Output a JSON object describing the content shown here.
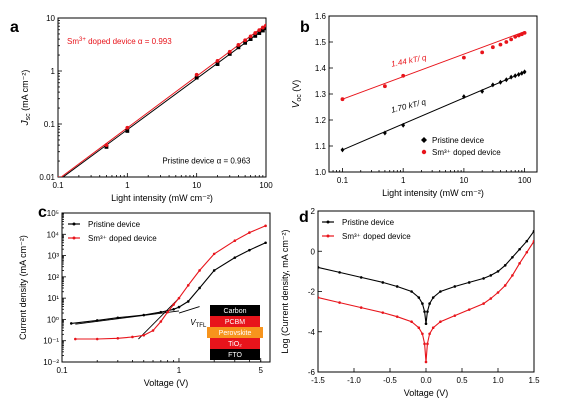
{
  "colors": {
    "black_series": "#000000",
    "red_series": "#e8141b"
  },
  "chart_data": [
    {
      "panel": "a",
      "type": "line",
      "xlabel": "Light intensity (mW cm⁻²)",
      "ylabel_main": "J",
      "ylabel_sub": "sc",
      "ylabel_unit": " (mA cm⁻²)",
      "xscale": "log",
      "yscale": "log",
      "xlim": [
        0.1,
        100
      ],
      "ylim": [
        0.01,
        10
      ],
      "xticks": [
        0.1,
        1,
        10,
        100
      ],
      "xtick_labels": [
        "0.1",
        "1",
        "10",
        "100"
      ],
      "yticks": [
        0.01,
        0.1,
        1,
        10
      ],
      "ytick_labels": [
        "0.01",
        "0.1",
        "1",
        "10"
      ],
      "series": [
        {
          "name": "Pristine device",
          "color": "#000000",
          "marker": "square",
          "x": [
            0.1,
            0.5,
            1,
            10,
            20,
            30,
            40,
            50,
            60,
            70,
            80,
            90,
            100
          ],
          "y": [
            0.009,
            0.037,
            0.074,
            0.75,
            1.35,
            2.1,
            2.8,
            3.4,
            4.0,
            4.6,
            5.2,
            5.8,
            6.4
          ],
          "fit": {
            "x": [
              0.1,
              100
            ],
            "y": [
              0.0085,
              6.6
            ]
          }
        },
        {
          "name": "Sm³⁺ doped device",
          "color": "#e8141b",
          "marker": "circle",
          "x": [
            0.1,
            0.5,
            1,
            10,
            20,
            30,
            40,
            50,
            60,
            70,
            80,
            90,
            100
          ],
          "y": [
            0.0095,
            0.04,
            0.085,
            0.85,
            1.55,
            2.3,
            3.1,
            3.8,
            4.5,
            5.2,
            5.9,
            6.6,
            7.2
          ],
          "fit": {
            "x": [
              0.1,
              100
            ],
            "y": [
              0.009,
              7.5
            ]
          }
        }
      ],
      "annotations": [
        {
          "prefix": "Sm",
          "sup": "3+",
          "suffix": " doped device α = 0.993",
          "color": "#e8141b",
          "at": [
            0.135,
            3.2
          ]
        },
        {
          "prefix": "Pristine device α = 0.963",
          "sup": "",
          "suffix": "",
          "color": "#000000",
          "at": [
            3.2,
            0.018
          ]
        }
      ]
    },
    {
      "panel": "b",
      "type": "line",
      "xlabel": "Light intensity (mW cm⁻²)",
      "ylabel_main": "V",
      "ylabel_sub": "oc",
      "ylabel_unit": " (V)",
      "xscale": "log",
      "yscale": "linear",
      "xlim": [
        0.06,
        160
      ],
      "ylim": [
        1.0,
        1.6
      ],
      "xticks": [
        0.1,
        1,
        10,
        100
      ],
      "xtick_labels": [
        "0.1",
        "1",
        "10",
        "100"
      ],
      "yticks": [
        1.0,
        1.1,
        1.2,
        1.3,
        1.4,
        1.5,
        1.6
      ],
      "ytick_labels": [
        "1.0",
        "1.1",
        "1.2",
        "1.3",
        "1.4",
        "1.5",
        "1.6"
      ],
      "series": [
        {
          "name": "Pristine device",
          "color": "#000000",
          "marker": "diamond",
          "x": [
            0.1,
            0.5,
            1,
            10,
            20,
            30,
            40,
            50,
            60,
            70,
            80,
            90,
            100
          ],
          "y": [
            1.085,
            1.15,
            1.18,
            1.29,
            1.31,
            1.335,
            1.345,
            1.355,
            1.365,
            1.37,
            1.375,
            1.38,
            1.385
          ],
          "fit": {
            "x": [
              0.1,
              100
            ],
            "y": [
              1.085,
              1.385
            ]
          }
        },
        {
          "name": "Sm³⁺ doped device",
          "color": "#e8141b",
          "marker": "circle",
          "x": [
            0.1,
            0.5,
            1,
            10,
            20,
            30,
            40,
            50,
            60,
            70,
            80,
            90,
            100
          ],
          "y": [
            1.28,
            1.33,
            1.37,
            1.44,
            1.46,
            1.48,
            1.49,
            1.5,
            1.51,
            1.52,
            1.525,
            1.53,
            1.535
          ],
          "fit": {
            "x": [
              0.1,
              100
            ],
            "y": [
              1.28,
              1.54
            ]
          }
        }
      ],
      "annotations": [
        {
          "text": "1.44 kT/ q",
          "color": "#e8141b",
          "at": [
            0.65,
            1.405
          ],
          "rotate": -11
        },
        {
          "text": "1.70 kT/ q",
          "color": "#000000",
          "at": [
            0.65,
            1.228
          ],
          "rotate": -14
        }
      ],
      "legend": {
        "position": "bottom-right"
      }
    },
    {
      "panel": "c",
      "type": "line",
      "xlabel": "Voltage (V)",
      "ylabel": "Current density (mA cm⁻²)",
      "xscale": "log",
      "yscale": "log",
      "xlim": [
        0.1,
        6
      ],
      "ylim": [
        0.01,
        100000
      ],
      "xticks": [
        0.1,
        1,
        5
      ],
      "xtick_labels": [
        "0.1",
        "1",
        "5"
      ],
      "yticks": [
        0.01,
        0.1,
        1,
        10,
        100,
        1000,
        10000,
        100000
      ],
      "ytick_labels": [
        "10⁻²",
        "10⁻¹",
        "10⁰",
        "10¹",
        "10²",
        "10³",
        "10⁴",
        "10⁵"
      ],
      "series": [
        {
          "name": "Pristine device",
          "color": "#000000",
          "x": [
            0.12,
            0.2,
            0.3,
            0.5,
            0.7,
            0.9,
            1.0,
            1.2,
            1.5,
            2,
            3,
            4,
            5.5
          ],
          "y": [
            0.65,
            0.9,
            1.2,
            1.6,
            2.2,
            3.0,
            3.8,
            7,
            30,
            200,
            800,
            1800,
            4000
          ]
        },
        {
          "name": "Sm³⁺ doped device",
          "color": "#e8141b",
          "x": [
            0.13,
            0.2,
            0.3,
            0.4,
            0.5,
            0.6,
            0.7,
            0.8,
            0.9,
            1.0,
            1.2,
            1.5,
            2,
            3,
            4,
            5.5
          ],
          "y": [
            0.12,
            0.12,
            0.13,
            0.15,
            0.18,
            0.3,
            0.8,
            2.2,
            5,
            10,
            40,
            200,
            1200,
            5000,
            12000,
            25000
          ]
        }
      ],
      "fit_lines": [
        {
          "x": [
            0.13,
            1.0
          ],
          "y": [
            0.6,
            2.5
          ]
        },
        {
          "x": [
            0.45,
            1.0
          ],
          "y": [
            0.12,
            10
          ]
        },
        {
          "x": [
            1.0,
            1.5
          ],
          "y": [
            2.0,
            4.0
          ]
        }
      ],
      "vtfl_label": {
        "main": "V",
        "sub": "TFL"
      },
      "device_stack": [
        {
          "label": "Carbon",
          "fill": "#000000",
          "text_color": "#ffffff"
        },
        {
          "label": "PCBM",
          "fill": "#e8141b",
          "text_color": "#ffffff"
        },
        {
          "label": "Perovskite",
          "fill": "#f7941d",
          "text_color": "#ffffff"
        },
        {
          "label": "TiO₂",
          "fill": "#e8141b",
          "text_color": "#ffffff"
        },
        {
          "label": "FTO",
          "fill": "#000000",
          "text_color": "#ffffff"
        }
      ]
    },
    {
      "panel": "d",
      "type": "line",
      "xlabel": "Voltage (V)",
      "ylabel": "Log (Current density, mA cm⁻²)",
      "xscale": "linear",
      "yscale": "linear",
      "xlim": [
        -1.5,
        1.5
      ],
      "ylim": [
        -6,
        2
      ],
      "xticks": [
        -1.5,
        -1.0,
        -0.5,
        0.0,
        0.5,
        1.0,
        1.5
      ],
      "xtick_labels": [
        "-1.5",
        "-1.0",
        "-0.5",
        "0.0",
        "0.5",
        "1.0",
        "1.5"
      ],
      "yticks": [
        -6,
        -4,
        -2,
        0,
        2
      ],
      "ytick_labels": [
        "-6",
        "-4",
        "-2",
        "0",
        "2"
      ],
      "series": [
        {
          "name": "Pristine device",
          "color": "#000000",
          "x": [
            -1.5,
            -1.2,
            -0.9,
            -0.6,
            -0.4,
            -0.2,
            -0.1,
            -0.05,
            -0.02,
            0.0,
            0.02,
            0.05,
            0.1,
            0.2,
            0.4,
            0.6,
            0.8,
            0.9,
            1.0,
            1.1,
            1.2,
            1.3,
            1.4,
            1.5
          ],
          "y": [
            -0.8,
            -1.05,
            -1.3,
            -1.55,
            -1.75,
            -2.0,
            -2.3,
            -2.6,
            -3.0,
            -3.6,
            -3.0,
            -2.6,
            -2.3,
            -2.0,
            -1.75,
            -1.55,
            -1.35,
            -1.2,
            -1.0,
            -0.7,
            -0.3,
            0.1,
            0.5,
            1.0
          ]
        },
        {
          "name": "Sm³⁺ doped device",
          "color": "#e8141b",
          "x": [
            -1.5,
            -1.2,
            -0.9,
            -0.6,
            -0.4,
            -0.2,
            -0.1,
            -0.05,
            -0.02,
            0.0,
            0.02,
            0.05,
            0.1,
            0.2,
            0.4,
            0.6,
            0.8,
            0.9,
            1.0,
            1.1,
            1.2,
            1.3,
            1.4,
            1.5
          ],
          "y": [
            -2.3,
            -2.55,
            -2.8,
            -3.05,
            -3.25,
            -3.5,
            -3.8,
            -4.1,
            -4.6,
            -5.5,
            -4.6,
            -4.1,
            -3.8,
            -3.5,
            -3.2,
            -2.9,
            -2.6,
            -2.35,
            -2.05,
            -1.7,
            -1.2,
            -0.6,
            -0.05,
            0.5
          ]
        }
      ]
    }
  ]
}
